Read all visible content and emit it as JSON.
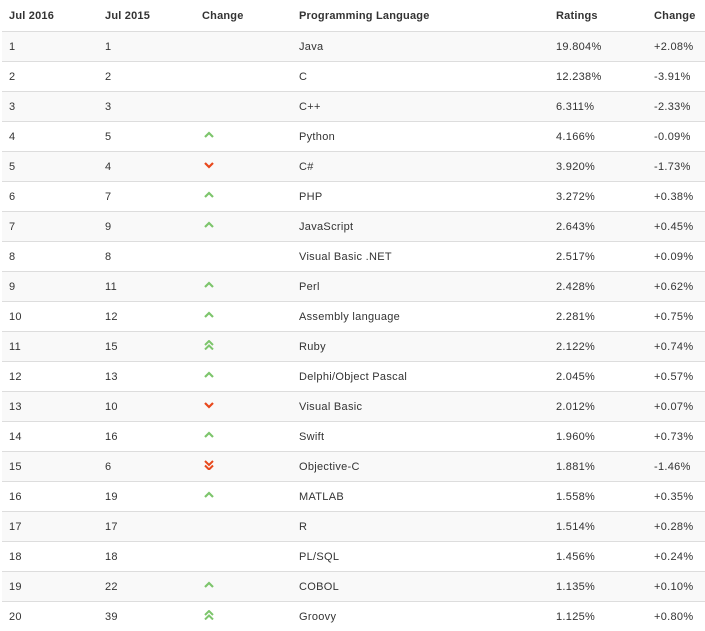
{
  "headers": [
    "Jul 2016",
    "Jul 2015",
    "Change",
    "Programming Language",
    "Ratings",
    "Change"
  ],
  "colors": {
    "up": "#7dc56c",
    "down": "#e8491d"
  },
  "rows": [
    {
      "jul2016": "1",
      "jul2015": "1",
      "trend": "none",
      "language": "Java",
      "rating": "19.804%",
      "change": "+2.08%"
    },
    {
      "jul2016": "2",
      "jul2015": "2",
      "trend": "none",
      "language": "C",
      "rating": "12.238%",
      "change": "-3.91%"
    },
    {
      "jul2016": "3",
      "jul2015": "3",
      "trend": "none",
      "language": "C++",
      "rating": "6.311%",
      "change": "-2.33%"
    },
    {
      "jul2016": "4",
      "jul2015": "5",
      "trend": "up",
      "language": "Python",
      "rating": "4.166%",
      "change": "-0.09%"
    },
    {
      "jul2016": "5",
      "jul2015": "4",
      "trend": "down",
      "language": "C#",
      "rating": "3.920%",
      "change": "-1.73%"
    },
    {
      "jul2016": "6",
      "jul2015": "7",
      "trend": "up",
      "language": "PHP",
      "rating": "3.272%",
      "change": "+0.38%"
    },
    {
      "jul2016": "7",
      "jul2015": "9",
      "trend": "up",
      "language": "JavaScript",
      "rating": "2.643%",
      "change": "+0.45%"
    },
    {
      "jul2016": "8",
      "jul2015": "8",
      "trend": "none",
      "language": "Visual Basic .NET",
      "rating": "2.517%",
      "change": "+0.09%"
    },
    {
      "jul2016": "9",
      "jul2015": "11",
      "trend": "up",
      "language": "Perl",
      "rating": "2.428%",
      "change": "+0.62%"
    },
    {
      "jul2016": "10",
      "jul2015": "12",
      "trend": "up",
      "language": "Assembly language",
      "rating": "2.281%",
      "change": "+0.75%"
    },
    {
      "jul2016": "11",
      "jul2015": "15",
      "trend": "up2",
      "language": "Ruby",
      "rating": "2.122%",
      "change": "+0.74%"
    },
    {
      "jul2016": "12",
      "jul2015": "13",
      "trend": "up",
      "language": "Delphi/Object Pascal",
      "rating": "2.045%",
      "change": "+0.57%"
    },
    {
      "jul2016": "13",
      "jul2015": "10",
      "trend": "down",
      "language": "Visual Basic",
      "rating": "2.012%",
      "change": "+0.07%"
    },
    {
      "jul2016": "14",
      "jul2015": "16",
      "trend": "up",
      "language": "Swift",
      "rating": "1.960%",
      "change": "+0.73%"
    },
    {
      "jul2016": "15",
      "jul2015": "6",
      "trend": "down2",
      "language": "Objective-C",
      "rating": "1.881%",
      "change": "-1.46%"
    },
    {
      "jul2016": "16",
      "jul2015": "19",
      "trend": "up",
      "language": "MATLAB",
      "rating": "1.558%",
      "change": "+0.35%"
    },
    {
      "jul2016": "17",
      "jul2015": "17",
      "trend": "none",
      "language": "R",
      "rating": "1.514%",
      "change": "+0.28%"
    },
    {
      "jul2016": "18",
      "jul2015": "18",
      "trend": "none",
      "language": "PL/SQL",
      "rating": "1.456%",
      "change": "+0.24%"
    },
    {
      "jul2016": "19",
      "jul2015": "22",
      "trend": "up",
      "language": "COBOL",
      "rating": "1.135%",
      "change": "+0.10%"
    },
    {
      "jul2016": "20",
      "jul2015": "39",
      "trend": "up2",
      "language": "Groovy",
      "rating": "1.125%",
      "change": "+0.80%"
    }
  ]
}
